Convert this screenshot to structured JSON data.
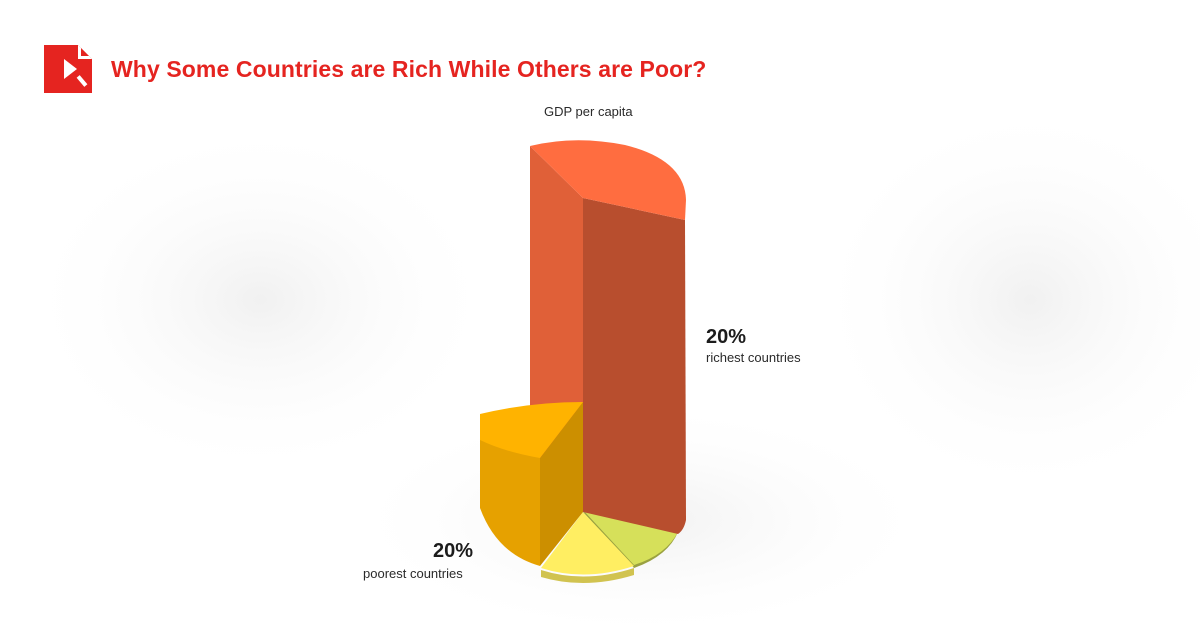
{
  "header": {
    "title": "Why Some Countries are Rich While Others are Poor?",
    "logo_icon": "brand-logo-icon",
    "brand_color": "#e52420"
  },
  "chart_data": {
    "type": "pie",
    "title": "GDP per capita",
    "slices": [
      {
        "percent": "20%",
        "label": "richest countries",
        "color": "#ff6d40"
      },
      {
        "percent": "",
        "label": "",
        "color": "#d6e05a"
      },
      {
        "percent": "",
        "label": "",
        "color": "#ffee62"
      },
      {
        "percent": "20%",
        "label": "poorest countries",
        "color": "#ffb300"
      }
    ]
  }
}
